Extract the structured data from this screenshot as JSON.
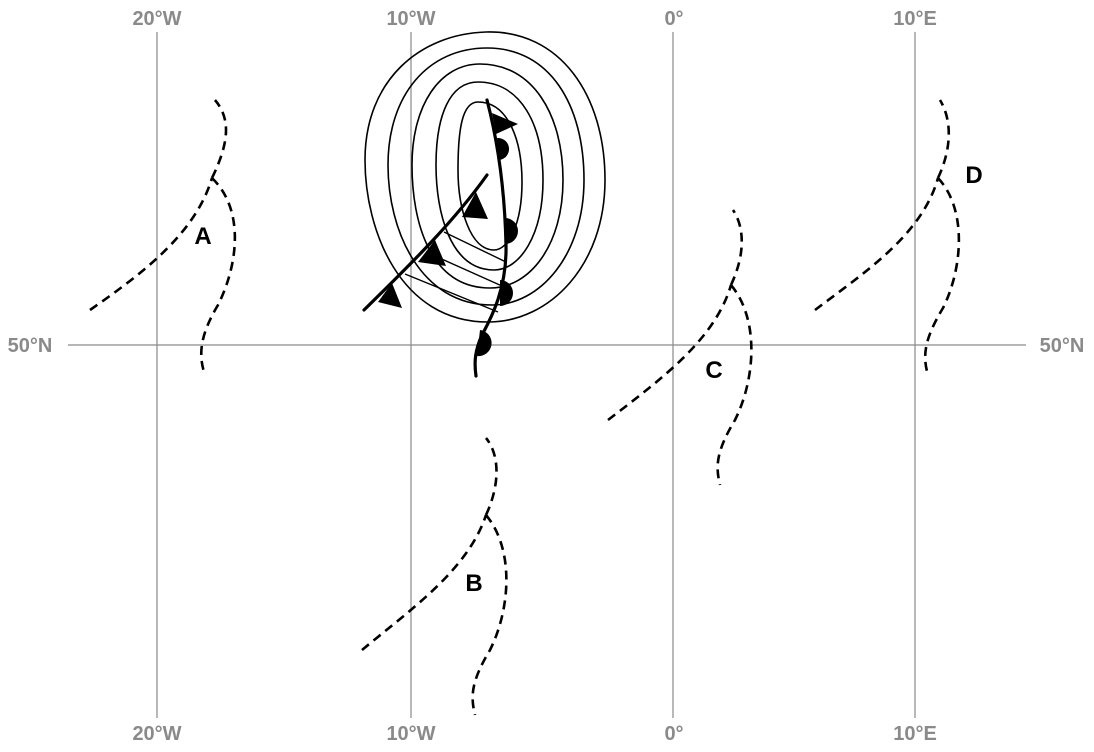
{
  "coordinates": {
    "longitudes_top": [
      "20°W",
      "10°W",
      "0°",
      "10°E"
    ],
    "longitudes_bottom": [
      "20°W",
      "10°W",
      "0°",
      "10°E"
    ],
    "latitude_left": "50°N",
    "latitude_right": "50°N"
  },
  "locations": {
    "a": "A",
    "b": "B",
    "c": "C",
    "d": "D"
  },
  "colors": {
    "grid": "#8a8a8a",
    "features": "#000000",
    "background": "#ffffff"
  }
}
